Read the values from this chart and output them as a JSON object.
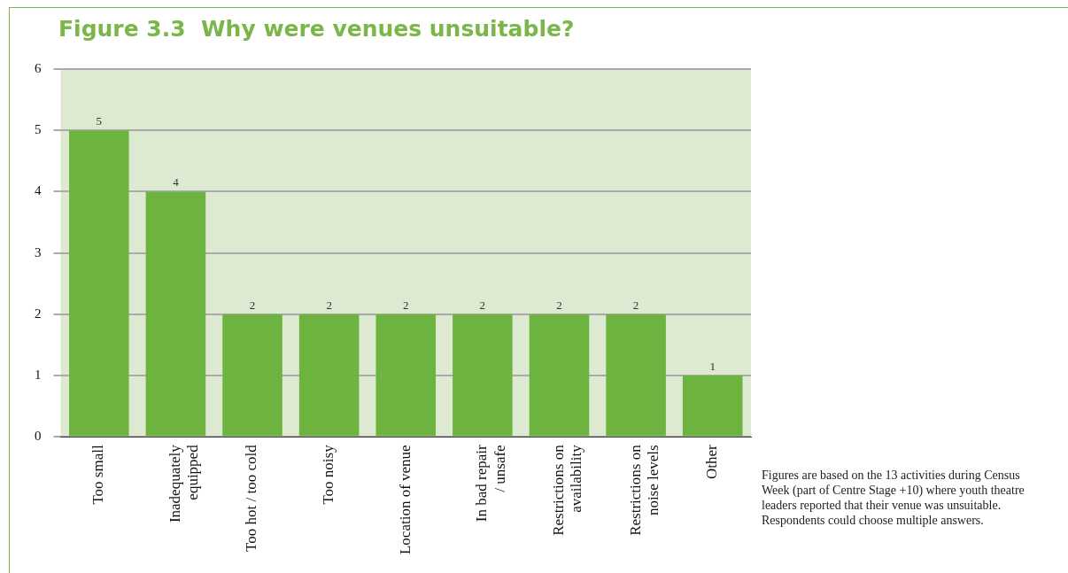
{
  "chart_data": {
    "type": "bar",
    "title": "Figure 3.3  Why were venues unsuitable?",
    "categories": [
      "Too small",
      "Inadequately equipped",
      "Too hot / too cold",
      "Too noisy",
      "Location of venue",
      "In bad repair / unsafe",
      "Restrictions on availability",
      "Restrictions on noise levels",
      "Other"
    ],
    "values": [
      5,
      4,
      2,
      2,
      2,
      2,
      2,
      2,
      1
    ],
    "color": "#6db33f",
    "ylim": [
      0,
      6
    ],
    "yticks": [
      0,
      1,
      2,
      3,
      4,
      5,
      6
    ],
    "grid": "y",
    "legend": false,
    "data_labels": true,
    "annotations": [
      "Figures are based on the 13 activities during Census Week (part of Centre Stage +10) where youth theatre leaders reported that their venue was unsuitable. Respondents could choose multiple answers."
    ]
  }
}
